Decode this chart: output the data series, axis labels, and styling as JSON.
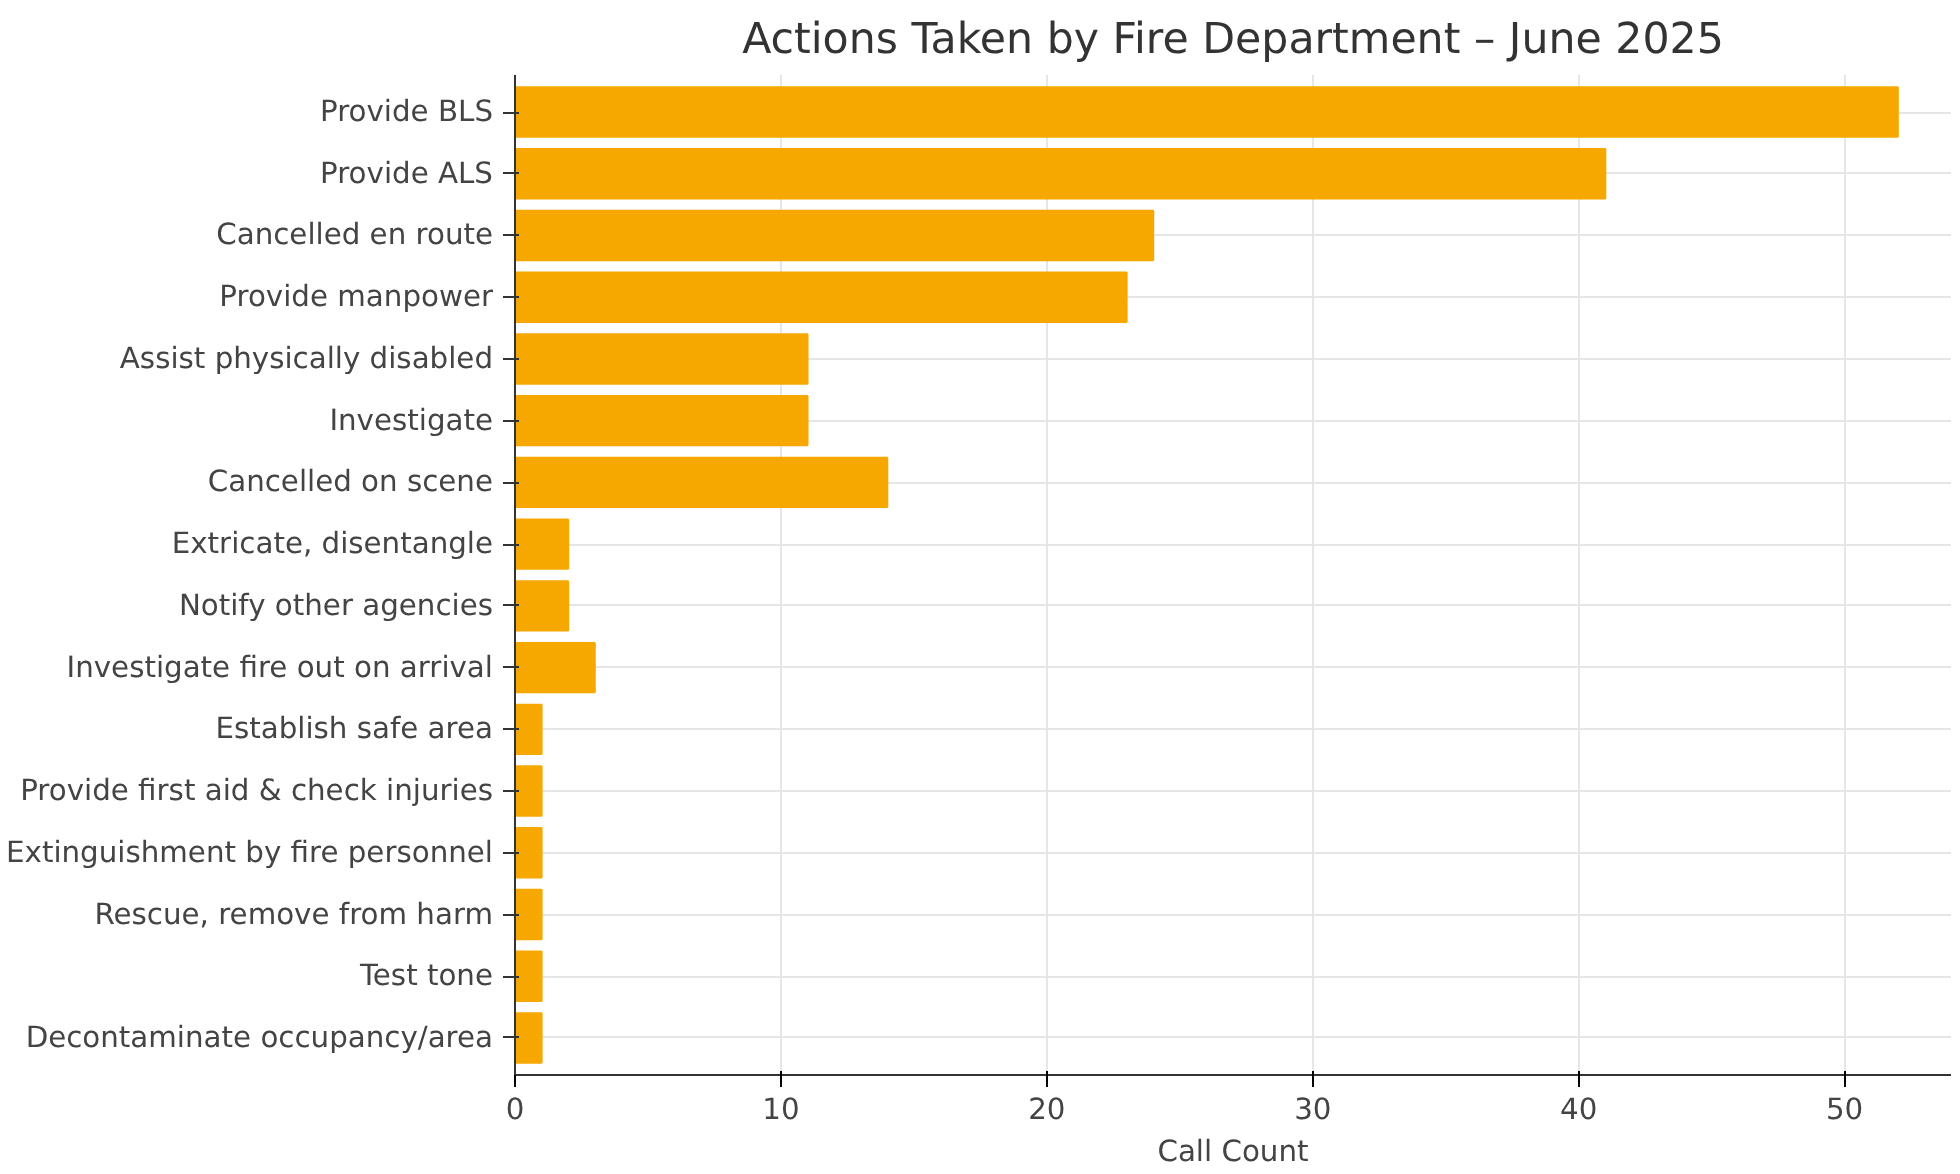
{
  "chart_data": {
    "type": "bar",
    "orientation": "horizontal",
    "title": "Actions Taken by Fire Department – June 2025",
    "xlabel": "Call Count",
    "categories": [
      "Provide BLS",
      "Provide ALS",
      "Cancelled en route",
      "Provide manpower",
      "Assist physically disabled",
      "Investigate",
      "Cancelled on scene",
      "Extricate, disentangle",
      "Notify other agencies",
      "Investigate fire out on arrival",
      "Establish safe area",
      "Provide first aid & check injuries",
      "Extinguishment by fire personnel",
      "Rescue, remove from harm",
      "Test tone",
      "Decontaminate occupancy/area"
    ],
    "values": [
      52,
      41,
      24,
      23,
      11,
      11,
      14,
      2,
      2,
      3,
      1,
      1,
      1,
      1,
      1,
      1
    ],
    "color": "#f7a800",
    "xlim": [
      0,
      54
    ],
    "xticks": [
      0,
      10,
      20,
      30,
      40,
      50
    ],
    "grid": true
  }
}
